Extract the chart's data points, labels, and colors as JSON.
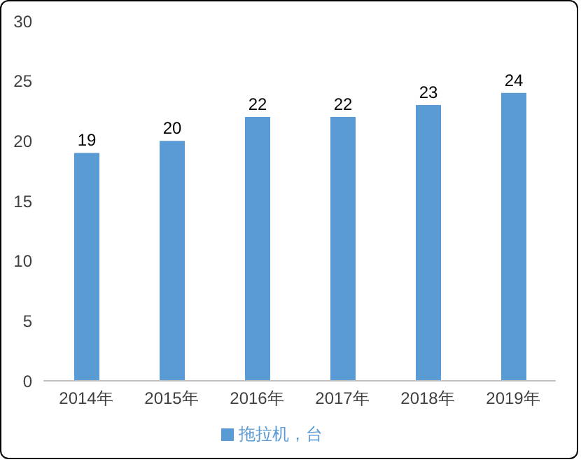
{
  "chart_data": {
    "type": "bar",
    "categories": [
      "2014年",
      "2015年",
      "2016年",
      "2017年",
      "2018年",
      "2019年"
    ],
    "series": [
      {
        "name": "拖拉机，台",
        "color": "#5b9bd5",
        "values": [
          19,
          20,
          22,
          22,
          23,
          24
        ]
      }
    ],
    "ylim": [
      0,
      30
    ],
    "yticks": [
      0,
      5,
      10,
      15,
      20,
      25,
      30
    ],
    "data_labels": true,
    "legend": "bottom"
  }
}
